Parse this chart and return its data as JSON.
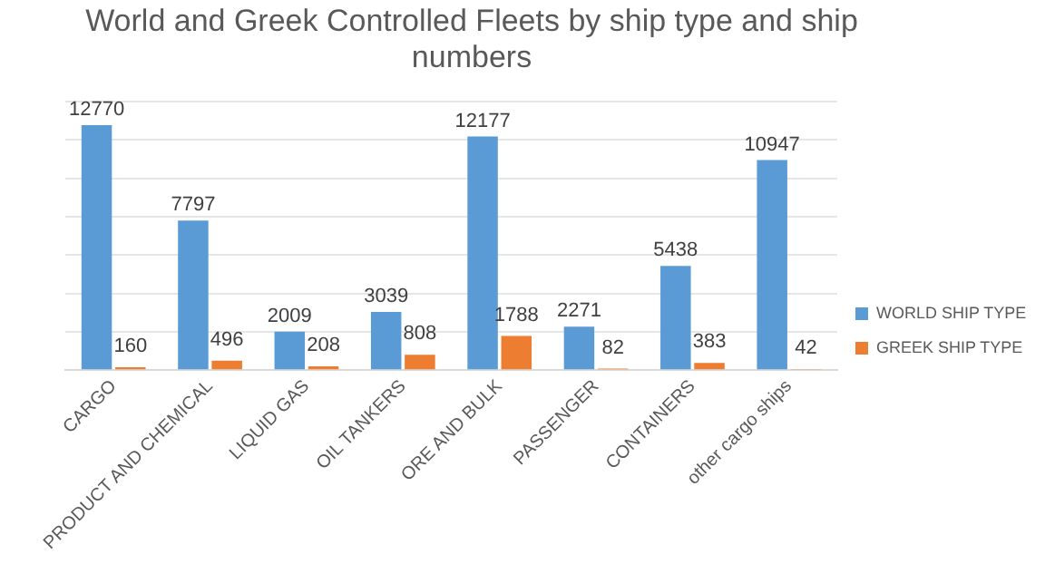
{
  "chart_data": {
    "type": "bar",
    "title": "World and Greek Controlled Fleets by ship type and ship numbers",
    "categories": [
      "CARGO",
      "PRODUCT AND CHEMICAL",
      "LIQUID GAS",
      "OIL TANKERS",
      "ORE AND BULK",
      "PASSENGER",
      "CONTAINERS",
      "other cargo ships"
    ],
    "series": [
      {
        "name": "WORLD SHIP TYPE",
        "color": "#5b9bd5",
        "values": [
          12770,
          7797,
          2009,
          3039,
          12177,
          2271,
          5438,
          10947
        ]
      },
      {
        "name": "GREEK SHIP TYPE",
        "color": "#ed7d31",
        "values": [
          160,
          496,
          208,
          808,
          1788,
          82,
          383,
          42
        ]
      }
    ],
    "ylim": [
      0,
      14000
    ],
    "yticks": [
      {
        "value": 0,
        "label": null
      },
      {
        "value": 2000,
        "label": null
      },
      {
        "value": 4000,
        "label": null
      },
      {
        "value": 6000,
        "label": null
      },
      {
        "value": 8000,
        "label": null
      },
      {
        "value": 10000,
        "label": null
      },
      {
        "value": 12000,
        "label": null
      },
      {
        "value": 14000,
        "label": null
      }
    ],
    "tick_labels": "x",
    "grid": "y",
    "legend": "right",
    "data_labels": true
  }
}
